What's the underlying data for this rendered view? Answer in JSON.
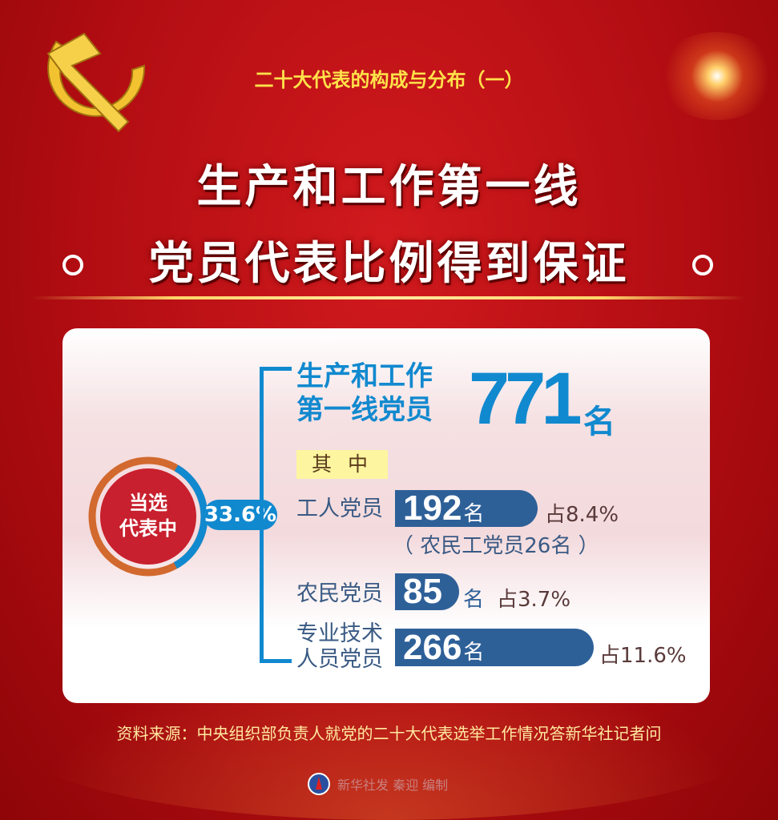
{
  "header": {
    "subtitle": "二十大代表的构成与分布（一）",
    "title_line1": "生产和工作第一线",
    "title_line2": "党员代表比例得到保证"
  },
  "donut": {
    "label_line1": "当选",
    "label_line2": "代表中",
    "percent_label": "33.6%",
    "percent": 33.6,
    "colors": {
      "highlight": "#1189cf",
      "rest": "#d2692e",
      "center": "#c8202e"
    }
  },
  "headline": {
    "line1": "生产和工作",
    "line2": "第一线党员",
    "count": "771",
    "unit": "名"
  },
  "breakdown_tag": "其 中",
  "items": [
    {
      "label": "工人党员",
      "value": "192",
      "unit": "名",
      "share": "占8.4%",
      "note": "（ 农民工党员26名 ）"
    },
    {
      "label": "农民党员",
      "value": "85",
      "unit": "名",
      "share": "占3.7%"
    },
    {
      "label_line1": "专业技术",
      "label_line2": "人员党员",
      "value": "266",
      "unit": "名",
      "share": "占11.6%"
    }
  ],
  "source": "资料来源：中央组织部负责人就党的二十大代表选举工作情况答新华社记者问",
  "credit": "新华社发 秦迎 编制",
  "colors": {
    "background": "#b20d12",
    "accent_blue": "#1189cf",
    "bar": "#2e6098",
    "title_yellow": "#ffe24a"
  }
}
